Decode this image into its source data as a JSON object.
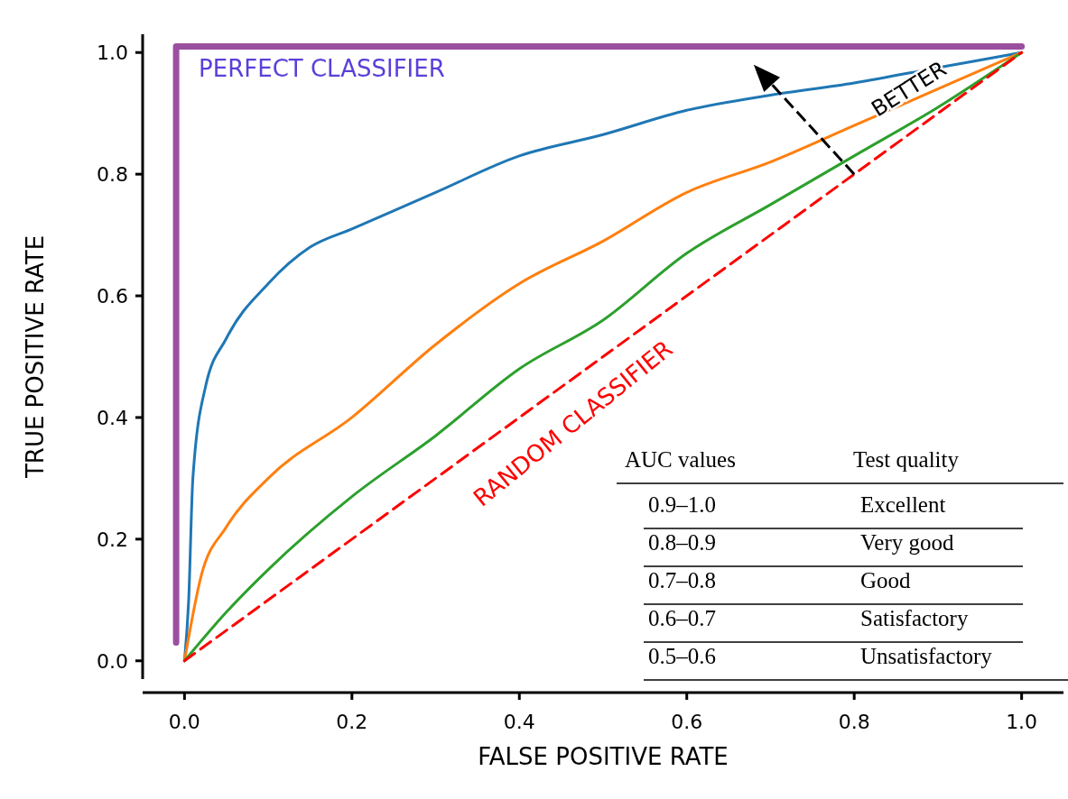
{
  "chart_data": {
    "type": "line",
    "xlabel": "FALSE POSITIVE RATE",
    "ylabel": "TRUE POSITIVE RATE",
    "xlim": [
      -0.05,
      1.05
    ],
    "ylim": [
      -0.03,
      1.03
    ],
    "xticks": [
      {
        "value": 0,
        "label": "0.0"
      },
      0.2,
      0.4,
      0.6,
      0.8,
      {
        "value": 1,
        "label": "1.0"
      }
    ],
    "yticks": [
      {
        "value": 0,
        "label": "0.0"
      },
      0.2,
      0.4,
      0.6,
      0.8,
      {
        "value": 1,
        "label": "1.0"
      }
    ],
    "grid": false,
    "legend": false,
    "series": [
      {
        "name": "PERFECT CLASSIFIER",
        "color": "#9b4f9f",
        "x": [
          -0.01,
          -0.01,
          1.0
        ],
        "values": [
          0.03,
          1.01,
          1.01
        ]
      },
      {
        "color": "#1f77b4",
        "x": [
          0,
          0.005,
          0.01,
          0.025,
          0.05,
          0.1,
          0.15,
          0.2,
          0.3,
          0.4,
          0.5,
          0.6,
          0.7,
          0.8,
          0.9,
          1
        ],
        "values": [
          0,
          0.1,
          0.3,
          0.45,
          0.53,
          0.62,
          0.68,
          0.71,
          0.77,
          0.83,
          0.865,
          0.905,
          0.93,
          0.95,
          0.975,
          1
        ]
      },
      {
        "color": "#ff7f0e",
        "x": [
          0,
          0.02,
          0.05,
          0.1,
          0.2,
          0.3,
          0.4,
          0.5,
          0.6,
          0.7,
          0.8,
          0.9,
          1
        ],
        "values": [
          0,
          0.14,
          0.22,
          0.3,
          0.4,
          0.52,
          0.62,
          0.69,
          0.77,
          0.82,
          0.88,
          0.94,
          1
        ]
      },
      {
        "color": "#2ca02c",
        "x": [
          0,
          0.05,
          0.1,
          0.2,
          0.3,
          0.4,
          0.5,
          0.6,
          0.7,
          0.8,
          0.9,
          1
        ],
        "values": [
          0,
          0.08,
          0.15,
          0.27,
          0.37,
          0.48,
          0.56,
          0.67,
          0.75,
          0.83,
          0.91,
          1
        ]
      },
      {
        "name": "RANDOM CLASSIFIER",
        "color": "#ff0000",
        "line_style": "dashed",
        "x": [
          0,
          1
        ],
        "values": [
          0,
          1
        ]
      }
    ],
    "annotations": [
      {
        "text": "BETTER",
        "x": 0.8,
        "y": 0.8
      },
      "AUC values",
      "Test quality",
      "0.9–1.0",
      "Excellent",
      "0.8–0.9",
      "Very good",
      "0.7–0.8",
      "Good",
      "0.6–0.7",
      "Satisfactory",
      "0.5–0.6",
      "Unsatisfactory"
    ]
  }
}
